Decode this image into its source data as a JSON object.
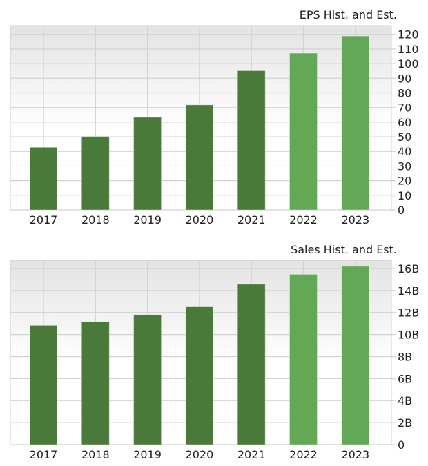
{
  "chart_data": [
    {
      "type": "bar",
      "title": "EPS Hist. and Est.",
      "categories": [
        "2017",
        "2018",
        "2019",
        "2020",
        "2021",
        "2022",
        "2023"
      ],
      "values": [
        42.8,
        50.2,
        63.3,
        71.8,
        95.1,
        107.1,
        118.9
      ],
      "bar_colors": [
        "#4a7a3a",
        "#4a7a3a",
        "#4a7a3a",
        "#4a7a3a",
        "#4a7a3a",
        "#63a857",
        "#63a857"
      ],
      "yticks": [
        0,
        10,
        20,
        30,
        40,
        50,
        60,
        70,
        80,
        90,
        100,
        110,
        120
      ],
      "ytick_labels": [
        "0",
        "10",
        "20",
        "30",
        "40",
        "50",
        "60",
        "70",
        "80",
        "90",
        "100",
        "110",
        "120"
      ],
      "ylim": [
        0,
        126
      ],
      "yaxis_side": "right",
      "grid": true
    },
    {
      "type": "bar",
      "title": "Sales Hist. and Est.",
      "categories": [
        "2017",
        "2018",
        "2019",
        "2020",
        "2021",
        "2022",
        "2023"
      ],
      "values": [
        10.83,
        11.17,
        11.8,
        12.57,
        14.57,
        15.47,
        16.2
      ],
      "unit": "B",
      "bar_colors": [
        "#4a7a3a",
        "#4a7a3a",
        "#4a7a3a",
        "#4a7a3a",
        "#4a7a3a",
        "#63a857",
        "#63a857"
      ],
      "yticks": [
        0,
        2,
        4,
        6,
        8,
        10,
        12,
        14,
        16
      ],
      "ytick_labels": [
        "0",
        "2B",
        "4B",
        "6B",
        "8B",
        "10B",
        "12B",
        "14B",
        "16B"
      ],
      "ylim": [
        0,
        16.75
      ],
      "yaxis_side": "right",
      "grid": true
    }
  ]
}
